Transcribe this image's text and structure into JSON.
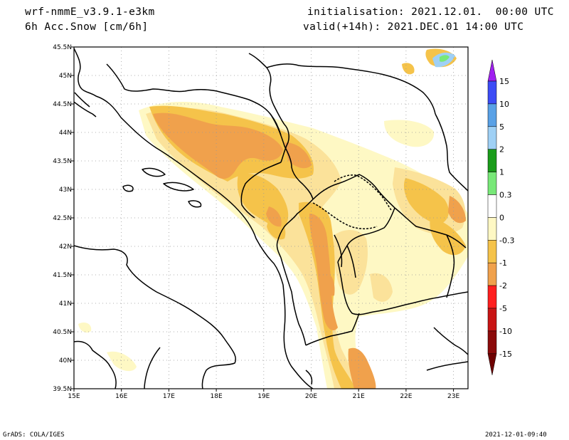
{
  "header": {
    "model": "wrf-nmmE_v3.9.1-e3km",
    "field": "6h Acc.Snow [cm/6h]",
    "init": "initialisation: 2021.12.01.  00:00 UTC",
    "valid": "valid(+14h): 2021.DEC.01 14:00 UTC"
  },
  "map": {
    "lat_labels": [
      "45.5N",
      "45N",
      "44.5N",
      "44N",
      "43.5N",
      "43N",
      "42.5N",
      "42N",
      "41.5N",
      "41N",
      "40.5N",
      "40N",
      "39.5N"
    ],
    "lon_labels": [
      "15E",
      "16E",
      "17E",
      "18E",
      "19E",
      "20E",
      "21E",
      "22E",
      "23E"
    ],
    "grid": true,
    "colors": {
      "pale": "#fef8c4",
      "light": "#fbe29a",
      "yellow": "#f5c34a",
      "orange": "#f0a14c"
    }
  },
  "colorbar": {
    "levels": [
      "15",
      "10",
      "5",
      "2",
      "1",
      "0.3",
      "0",
      "-0.3",
      "-1",
      "-2",
      "-5",
      "-10",
      "-15"
    ],
    "colors": [
      "#a020f0",
      "#3c4cf6",
      "#59a1e6",
      "#9fd0f5",
      "#1a9c1a",
      "#78e878",
      "#ffffff",
      "#fef8c4",
      "#f5c34a",
      "#f0a14c",
      "#ff1f1f",
      "#c81414",
      "#8b0a0a",
      "#6e0000"
    ]
  },
  "footer": {
    "left": "GrADS: COLA/IGES",
    "right": "2021-12-01-09:40"
  }
}
